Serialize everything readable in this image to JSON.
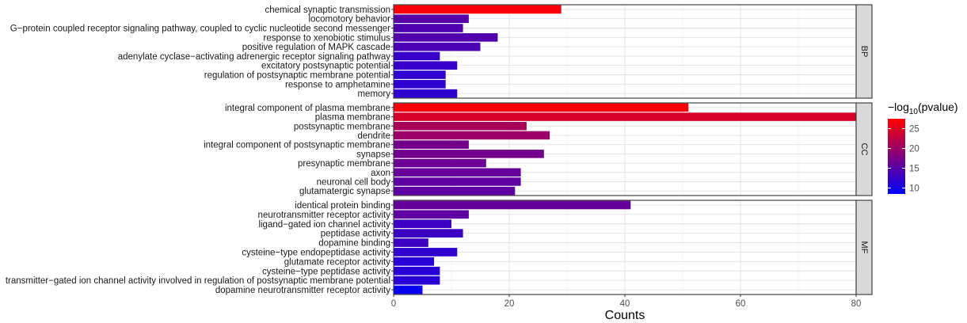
{
  "chart_data": {
    "type": "bar",
    "orientation": "horizontal",
    "xlabel": "Counts",
    "xlim": [
      0,
      80
    ],
    "x_ticks": [
      0,
      20,
      40,
      60,
      80
    ],
    "grid": true,
    "legend": {
      "title": "−log",
      "title_sub": "10",
      "title_rest": "(pvalue)",
      "placement": "right",
      "range": [
        8.5,
        27.5
      ],
      "ticks": [
        10,
        15,
        20,
        25
      ],
      "colors": [
        "#0000ff",
        "#ff0000"
      ]
    },
    "panels": [
      {
        "name": "BP",
        "bars": [
          {
            "term": "chemical synaptic transmission",
            "count": 29,
            "logp": 27.0
          },
          {
            "term": "locomotory behavior",
            "count": 13,
            "logp": 15.0
          },
          {
            "term": "G−protein coupled receptor signaling pathway, coupled to cyclic nucleotide second messenger",
            "count": 12,
            "logp": 14.5
          },
          {
            "term": "response to xenobiotic stimulus",
            "count": 18,
            "logp": 14.5
          },
          {
            "term": "positive regulation of MAPK cascade",
            "count": 15,
            "logp": 14.0
          },
          {
            "term": "adenylate cyclase−activating adrenergic receptor signaling pathway",
            "count": 8,
            "logp": 12.5
          },
          {
            "term": "excitatory postsynaptic potential",
            "count": 11,
            "logp": 12.5
          },
          {
            "term": "regulation of postsynaptic membrane potential",
            "count": 9,
            "logp": 12.0
          },
          {
            "term": "response to amphetamine",
            "count": 9,
            "logp": 12.0
          },
          {
            "term": "memory",
            "count": 11,
            "logp": 12.0
          }
        ]
      },
      {
        "name": "CC",
        "bars": [
          {
            "term": "integral component of plasma membrane",
            "count": 51,
            "logp": 27.0
          },
          {
            "term": "plasma membrane",
            "count": 80,
            "logp": 24.5
          },
          {
            "term": "postsynaptic membrane",
            "count": 23,
            "logp": 21.0
          },
          {
            "term": "dendrite",
            "count": 27,
            "logp": 20.0
          },
          {
            "term": "integral component of postsynaptic membrane",
            "count": 13,
            "logp": 17.0
          },
          {
            "term": "synapse",
            "count": 26,
            "logp": 17.0
          },
          {
            "term": "presynaptic membrane",
            "count": 16,
            "logp": 16.5
          },
          {
            "term": "axon",
            "count": 22,
            "logp": 16.0
          },
          {
            "term": "neuronal cell body",
            "count": 22,
            "logp": 15.5
          },
          {
            "term": "glutamatergic synapse",
            "count": 21,
            "logp": 15.5
          }
        ]
      },
      {
        "name": "MF",
        "bars": [
          {
            "term": "identical protein binding",
            "count": 41,
            "logp": 16.0
          },
          {
            "term": "neurotransmitter receptor activity",
            "count": 13,
            "logp": 15.5
          },
          {
            "term": "ligand−gated ion channel activity",
            "count": 10,
            "logp": 13.0
          },
          {
            "term": "peptidase activity",
            "count": 12,
            "logp": 13.0
          },
          {
            "term": "dopamine binding",
            "count": 6,
            "logp": 13.0
          },
          {
            "term": "cysteine−type endopeptidase activity",
            "count": 11,
            "logp": 12.0
          },
          {
            "term": "glutamate receptor activity",
            "count": 7,
            "logp": 11.5
          },
          {
            "term": "cysteine−type peptidase activity",
            "count": 8,
            "logp": 11.5
          },
          {
            "term": "transmitter−gated ion channel activity involved in regulation of postsynaptic membrane potential",
            "count": 8,
            "logp": 11.5
          },
          {
            "term": "dopamine neurotransmitter receptor activity",
            "count": 5,
            "logp": 9.0
          }
        ]
      }
    ]
  }
}
